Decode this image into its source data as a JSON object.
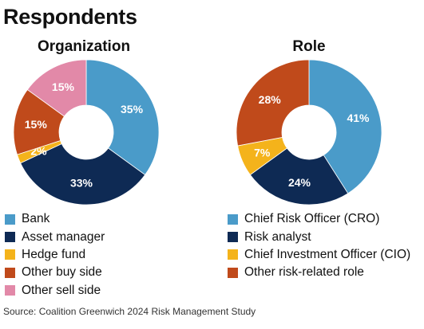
{
  "title": "Respondents",
  "source": "Source: Coalition Greenwich 2024 Risk Management Study",
  "chart_data": [
    {
      "type": "pie",
      "title": "Organization",
      "donut": true,
      "categories": [
        "Bank",
        "Asset manager",
        "Hedge fund",
        "Other buy side",
        "Other sell side"
      ],
      "values": [
        35,
        33,
        2,
        15,
        15
      ],
      "labels": [
        "35%",
        "33%",
        "2%",
        "15%",
        "15%"
      ],
      "colors": [
        "#4a9bc9",
        "#0e2a54",
        "#f4b31b",
        "#c04a1b",
        "#e289a8"
      ],
      "label_colors": [
        "#ffffff",
        "#ffffff",
        "#ffffff",
        "#ffffff",
        "#ffffff"
      ],
      "legend_position": "bottom"
    },
    {
      "type": "pie",
      "title": "Role",
      "donut": true,
      "categories": [
        "Chief Risk Officer (CRO)",
        "Risk analyst",
        "Chief Investment Officer (CIO)",
        "Other risk-related role"
      ],
      "values": [
        41,
        24,
        7,
        28
      ],
      "labels": [
        "41%",
        "24%",
        "7%",
        "28%"
      ],
      "colors": [
        "#4a9bc9",
        "#0e2a54",
        "#f4b31b",
        "#c04a1b"
      ],
      "label_colors": [
        "#ffffff",
        "#ffffff",
        "#ffffff",
        "#ffffff"
      ],
      "legend_position": "bottom"
    }
  ]
}
